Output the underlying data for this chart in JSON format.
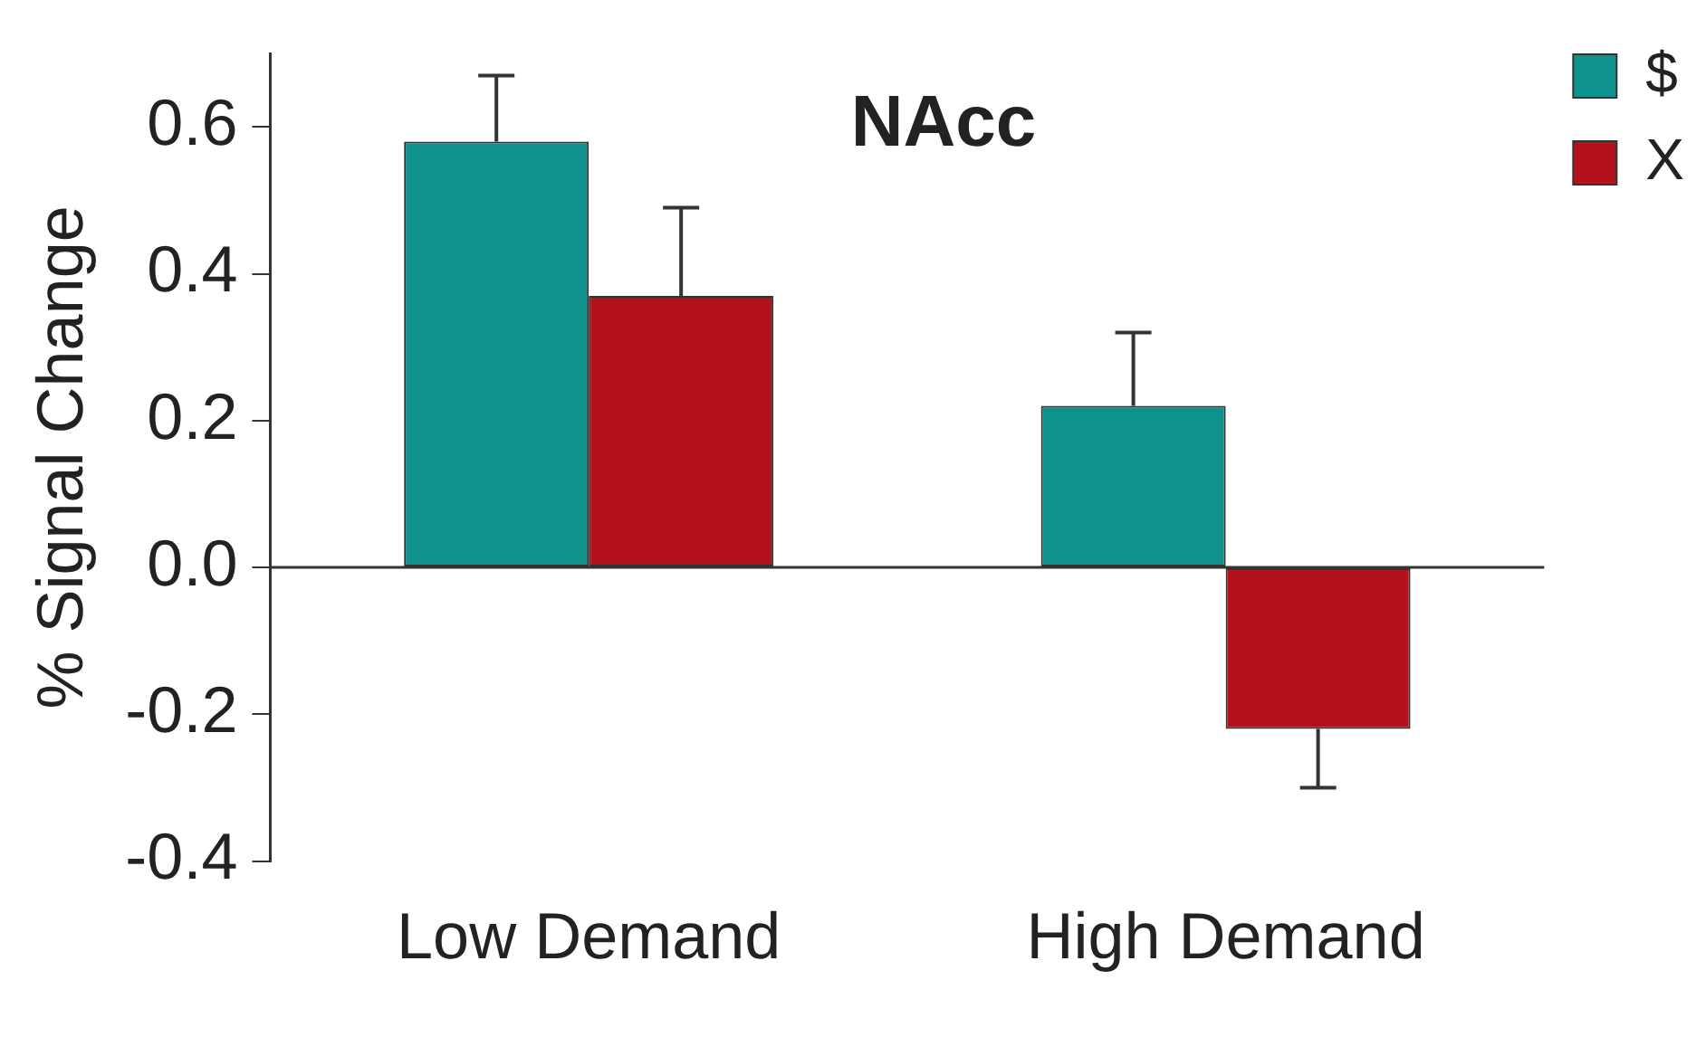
{
  "chart_data": {
    "type": "bar",
    "title": "NAcc",
    "ylabel": "% Signal Change",
    "categories": [
      "Low Demand",
      "High Demand"
    ],
    "series": [
      {
        "name": "$",
        "color": "#0f918d",
        "values": [
          0.58,
          0.22
        ],
        "errors": [
          [
            0.58,
            0.67
          ],
          [
            0.22,
            0.32
          ]
        ]
      },
      {
        "name": "X",
        "color": "#b3121d",
        "values": [
          0.37,
          -0.22
        ],
        "errors": [
          [
            0.37,
            0.49
          ],
          [
            -0.3,
            -0.22
          ]
        ]
      }
    ],
    "ylim": [
      -0.4,
      0.7
    ],
    "yticks": [
      {
        "value": -0.4,
        "label": "-0.4"
      },
      {
        "value": -0.2,
        "label": "-0.2"
      },
      {
        "value": 0,
        "label": "0.0"
      },
      {
        "value": 0.2,
        "label": "0.2"
      },
      {
        "value": 0.4,
        "label": "0.4"
      },
      {
        "value": 0.6,
        "label": "0.6"
      }
    ],
    "ref_lines": [
      {
        "axis": "y",
        "value": 0
      }
    ],
    "grid": false,
    "legend": "top right"
  }
}
